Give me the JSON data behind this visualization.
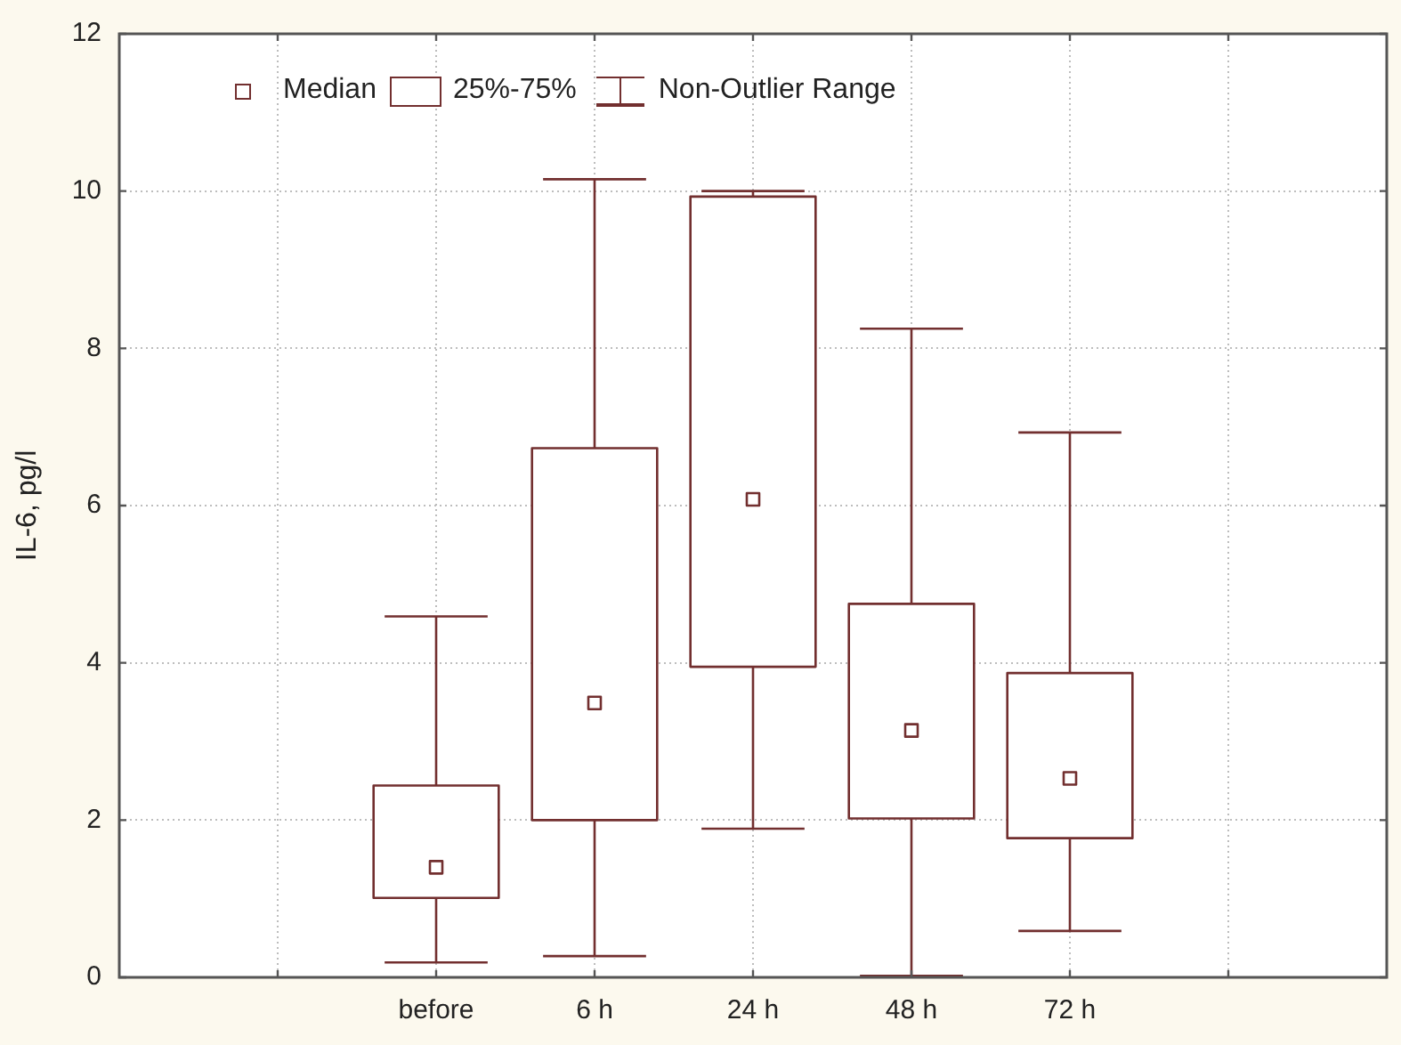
{
  "chart_data": {
    "type": "box",
    "categories": [
      null,
      "before",
      "6 h",
      "24 h",
      "48 h",
      "72 h",
      null
    ],
    "boxes": [
      null,
      {
        "low": 0.19,
        "q1": 1.01,
        "median": 1.4,
        "q3": 2.44,
        "high": 4.59
      },
      {
        "low": 0.27,
        "q1": 2.0,
        "median": 3.49,
        "q3": 6.73,
        "high": 10.15
      },
      {
        "low": 1.89,
        "q1": 3.95,
        "median": 6.08,
        "q3": 9.93,
        "high": 10.0
      },
      {
        "low": 0.02,
        "q1": 2.02,
        "median": 3.14,
        "q3": 4.75,
        "high": 8.25
      },
      {
        "low": 0.59,
        "q1": 1.77,
        "median": 2.53,
        "q3": 3.87,
        "high": 6.93
      },
      null
    ],
    "color": "#722f2f",
    "ylabel": "IL-6, pg/l",
    "ylim": [
      0,
      12
    ],
    "yticks": [
      0,
      2,
      4,
      6,
      8,
      10,
      12
    ],
    "grid": true,
    "annotations": [
      "Median",
      "25%-75%",
      "Non-Outlier Range"
    ]
  }
}
